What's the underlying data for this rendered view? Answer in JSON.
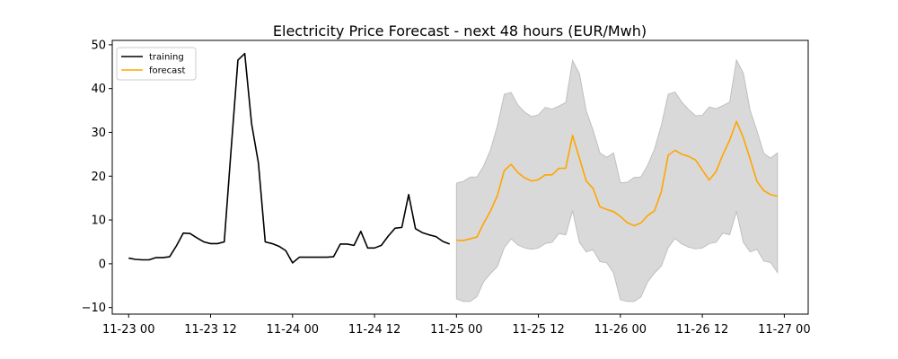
{
  "chart_data": {
    "type": "line",
    "title": "Electricity Price Forecast - next 48 hours (EUR/Mwh)",
    "xlabel": "",
    "ylabel": "",
    "x_tick_labels": [
      "11-23 00",
      "11-23 12",
      "11-24 00",
      "11-24 12",
      "11-25 00",
      "11-25 12",
      "11-26 00",
      "11-26 12",
      "11-27 00"
    ],
    "y_tick_labels": [
      "−10",
      "0",
      "10",
      "20",
      "30",
      "40",
      "50"
    ],
    "y_ticks": [
      -10,
      0,
      10,
      20,
      30,
      40,
      50
    ],
    "xlim_hours": [
      -2.4,
      99.5
    ],
    "ylim": [
      -11.5,
      51
    ],
    "grid": false,
    "legend_placement": "top-left",
    "legend": [
      {
        "label": "training",
        "color": "#000000"
      },
      {
        "label": "forecast",
        "color": "#ffa500"
      }
    ],
    "band_color": "#d9d9d9",
    "band_edge_color": "#bfbfbf",
    "series": [
      {
        "name": "training",
        "color": "#000000",
        "x": [
          "11-23 00",
          "11-23 01",
          "11-23 02",
          "11-23 03",
          "11-23 04",
          "11-23 05",
          "11-23 06",
          "11-23 07",
          "11-23 08",
          "11-23 09",
          "11-23 10",
          "11-23 11",
          "11-23 12",
          "11-23 13",
          "11-23 14",
          "11-23 15",
          "11-23 16",
          "11-23 17",
          "11-23 18",
          "11-23 19",
          "11-23 20",
          "11-23 21",
          "11-23 22",
          "11-23 23",
          "11-24 00",
          "11-24 01",
          "11-24 02",
          "11-24 03",
          "11-24 04",
          "11-24 05",
          "11-24 06",
          "11-24 07",
          "11-24 08",
          "11-24 09",
          "11-24 10",
          "11-24 11",
          "11-24 12",
          "11-24 13",
          "11-24 14",
          "11-24 15",
          "11-24 16",
          "11-24 17",
          "11-24 18",
          "11-24 19",
          "11-24 20",
          "11-24 21",
          "11-24 22",
          "11-24 23"
        ],
        "values": [
          1.3,
          1.0,
          0.9,
          0.9,
          1.4,
          1.4,
          1.6,
          4.1,
          7.0,
          6.9,
          5.9,
          5.0,
          4.6,
          4.6,
          5.0,
          26.0,
          46.5,
          48.0,
          32.0,
          23.0,
          5.0,
          4.6,
          4.0,
          3.0,
          0.2,
          1.5,
          1.5,
          1.5,
          1.5,
          1.5,
          1.6,
          4.5,
          4.5,
          4.2,
          7.4,
          3.6,
          3.6,
          4.2,
          6.3,
          8.1,
          8.3,
          15.8,
          8.0,
          7.1,
          6.6,
          6.2,
          5.1,
          4.5
        ]
      },
      {
        "name": "forecast",
        "color": "#ffa500",
        "x": [
          "11-25 00",
          "11-25 01",
          "11-25 02",
          "11-25 03",
          "11-25 04",
          "11-25 05",
          "11-25 06",
          "11-25 07",
          "11-25 08",
          "11-25 09",
          "11-25 10",
          "11-25 11",
          "11-25 12",
          "11-25 13",
          "11-25 14",
          "11-25 15",
          "11-25 16",
          "11-25 17",
          "11-25 18",
          "11-25 19",
          "11-25 20",
          "11-25 21",
          "11-25 22",
          "11-25 23",
          "11-26 00",
          "11-26 01",
          "11-26 02",
          "11-26 03",
          "11-26 04",
          "11-26 05",
          "11-26 06",
          "11-26 07",
          "11-26 08",
          "11-26 09",
          "11-26 10",
          "11-26 11",
          "11-26 12",
          "11-26 13",
          "11-26 14",
          "11-26 15",
          "11-26 16",
          "11-26 17",
          "11-26 18",
          "11-26 19",
          "11-26 20",
          "11-26 21",
          "11-26 22",
          "11-26 23"
        ],
        "values": [
          5.4,
          5.3,
          5.7,
          6.1,
          9.3,
          12.1,
          15.6,
          21.3,
          22.7,
          20.8,
          19.6,
          18.9,
          19.2,
          20.3,
          20.3,
          21.8,
          21.8,
          29.3,
          24.1,
          18.9,
          17.2,
          13.0,
          12.4,
          11.9,
          10.8,
          9.4,
          8.7,
          9.3,
          11.0,
          12.1,
          16.5,
          24.8,
          25.9,
          25.0,
          24.5,
          23.7,
          21.4,
          19.1,
          21.0,
          24.9,
          28.2,
          32.5,
          28.8,
          23.9,
          18.8,
          16.7,
          15.8,
          15.4
        ]
      }
    ],
    "forecast_band": {
      "x": [
        "11-25 00",
        "11-25 01",
        "11-25 02",
        "11-25 03",
        "11-25 04",
        "11-25 05",
        "11-25 06",
        "11-25 07",
        "11-25 08",
        "11-25 09",
        "11-25 10",
        "11-25 11",
        "11-25 12",
        "11-25 13",
        "11-25 14",
        "11-25 15",
        "11-25 16",
        "11-25 17",
        "11-25 18",
        "11-25 19",
        "11-25 20",
        "11-25 21",
        "11-25 22",
        "11-25 23",
        "11-26 00",
        "11-26 01",
        "11-26 02",
        "11-26 03",
        "11-26 04",
        "11-26 05",
        "11-26 06",
        "11-26 07",
        "11-26 08",
        "11-26 09",
        "11-26 10",
        "11-26 11",
        "11-26 12",
        "11-26 13",
        "11-26 14",
        "11-26 15",
        "11-26 16",
        "11-26 17",
        "11-26 18",
        "11-26 19",
        "11-26 20",
        "11-26 21",
        "11-26 22",
        "11-26 23"
      ],
      "upper": [
        18.4,
        18.8,
        19.8,
        19.8,
        22.4,
        26.1,
        31.5,
        38.7,
        39.1,
        36.2,
        34.6,
        33.6,
        34.0,
        35.7,
        35.3,
        36.0,
        36.8,
        46.4,
        43.4,
        34.9,
        30.5,
        25.3,
        24.3,
        25.3,
        18.5,
        18.6,
        19.7,
        19.8,
        22.5,
        26.2,
        31.6,
        38.7,
        39.2,
        36.9,
        35.2,
        33.8,
        33.9,
        35.8,
        35.4,
        36.1,
        36.9,
        46.5,
        43.5,
        35.0,
        30.3,
        25.2,
        24.1,
        25.3
      ],
      "lower": [
        -8.0,
        -8.6,
        -8.6,
        -7.5,
        -4.0,
        -2.2,
        -0.6,
        3.7,
        5.7,
        4.3,
        3.6,
        3.3,
        3.6,
        4.6,
        4.9,
        6.9,
        6.6,
        12.1,
        4.9,
        2.7,
        3.2,
        0.5,
        0.2,
        -2.1,
        -8.2,
        -8.6,
        -8.6,
        -7.6,
        -4.1,
        -2.1,
        -0.5,
        3.7,
        5.8,
        4.5,
        3.8,
        3.4,
        3.6,
        4.6,
        4.9,
        7.0,
        6.6,
        12.0,
        4.9,
        2.7,
        3.3,
        0.6,
        0.3,
        -2.0
      ]
    }
  }
}
